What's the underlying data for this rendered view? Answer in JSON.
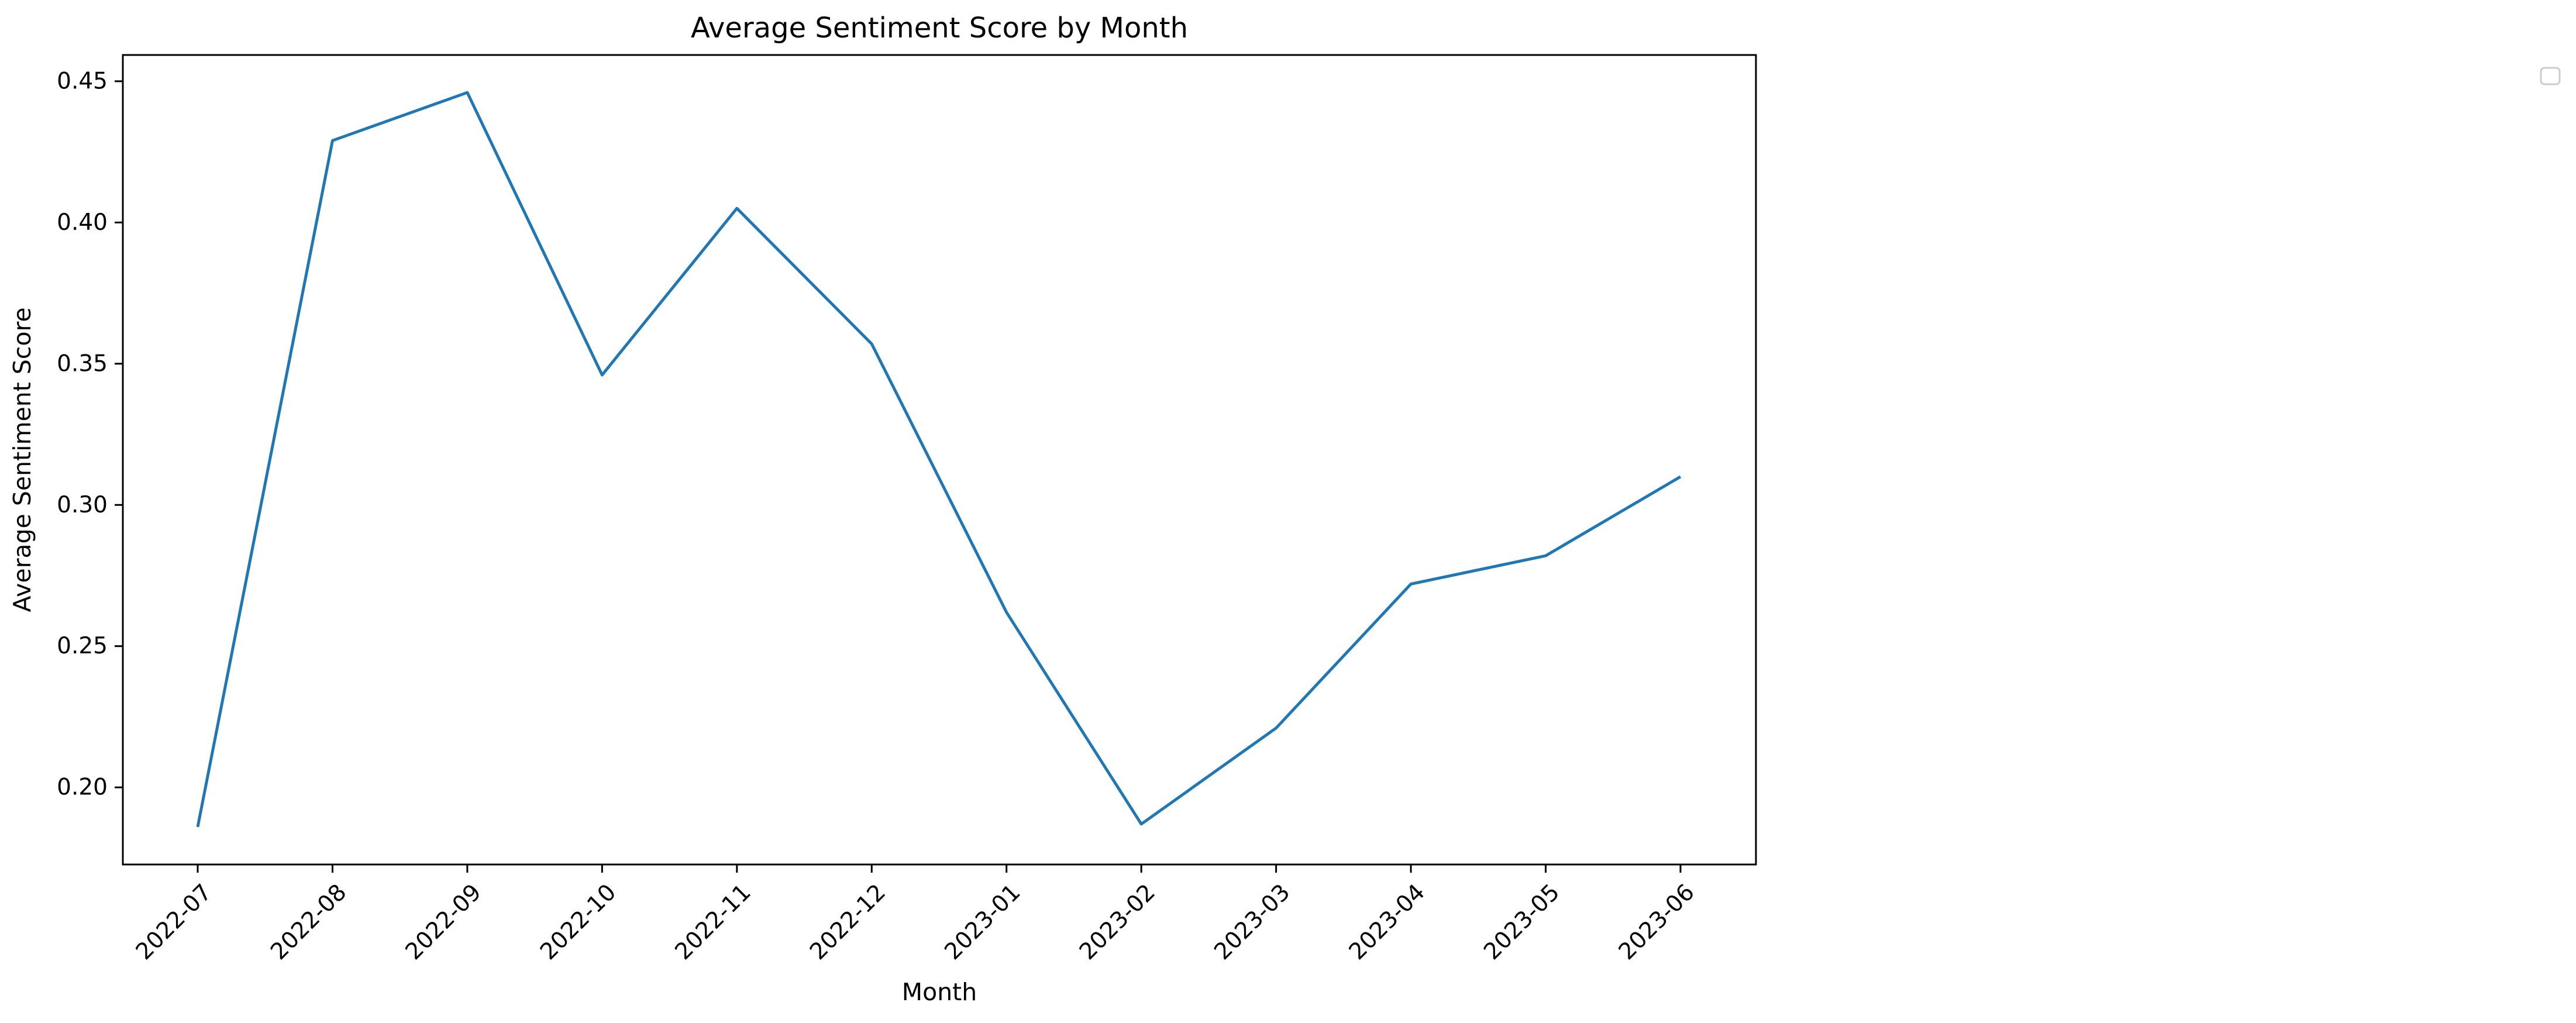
{
  "chart_data": {
    "type": "line",
    "title": "Average Sentiment Score by Month",
    "xlabel": "Month",
    "ylabel": "Average Sentiment Score",
    "x": [
      "2022-07",
      "2022-08",
      "2022-09",
      "2022-10",
      "2022-11",
      "2022-12",
      "2023-01",
      "2023-02",
      "2023-03",
      "2023-04",
      "2023-05",
      "2023-06"
    ],
    "series": [
      {
        "values": [
          0.186,
          0.429,
          0.446,
          0.346,
          0.405,
          0.357,
          0.262,
          0.187,
          0.221,
          0.272,
          0.282,
          0.31
        ],
        "color": "#1f77b4"
      }
    ],
    "yticks": [
      0.2,
      0.25,
      0.3,
      0.35,
      0.4,
      0.45
    ],
    "ytick_labels": [
      "0.20",
      "0.25",
      "0.30",
      "0.35",
      "0.40",
      "0.45"
    ],
    "ylim": [
      0.1727,
      0.4593
    ],
    "grid": false,
    "legend": {
      "placement": "top-right",
      "entries": []
    }
  }
}
